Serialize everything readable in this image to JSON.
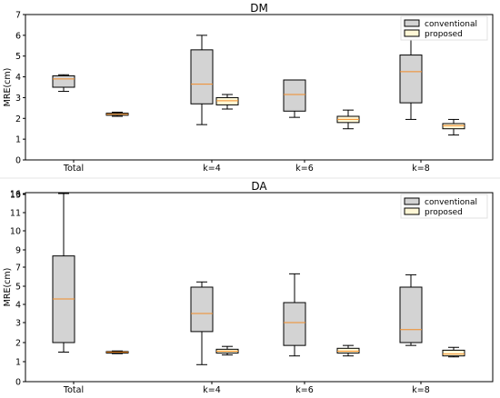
{
  "chart_data": [
    {
      "type": "box",
      "title": "DM",
      "ylabel": "MRE(cm)",
      "xlabel": "",
      "categories": [
        "Total",
        "k=4",
        "k=6",
        "k=8"
      ],
      "ylim": [
        0,
        7
      ],
      "yticks": [
        "0",
        "1",
        "2",
        "3",
        "4",
        "5",
        "6",
        "7"
      ],
      "grid": false,
      "legend_position": "top-right",
      "series": [
        {
          "name": "conventional",
          "color": "#d3d3d3",
          "boxes": [
            {
              "min": 3.3,
              "q1": 3.5,
              "median": 3.9,
              "q3": 4.05,
              "max": 4.1
            },
            {
              "min": 1.7,
              "q1": 2.7,
              "median": 3.65,
              "q3": 5.3,
              "max": 6.0
            },
            {
              "min": 2.05,
              "q1": 2.35,
              "median": 3.15,
              "q3": 3.85,
              "max": 3.85
            },
            {
              "min": 1.95,
              "q1": 2.75,
              "median": 4.25,
              "q3": 5.05,
              "max": 5.8
            }
          ]
        },
        {
          "name": "proposed",
          "color": "#fff7d6",
          "boxes": [
            {
              "min": 2.1,
              "q1": 2.15,
              "median": 2.2,
              "q3": 2.25,
              "max": 2.3
            },
            {
              "min": 2.45,
              "q1": 2.65,
              "median": 2.85,
              "q3": 3.0,
              "max": 3.15
            },
            {
              "min": 1.5,
              "q1": 1.8,
              "median": 1.95,
              "q3": 2.1,
              "max": 2.4
            },
            {
              "min": 1.2,
              "q1": 1.5,
              "median": 1.65,
              "q3": 1.75,
              "max": 1.95
            }
          ]
        }
      ]
    },
    {
      "type": "box",
      "title": "DA",
      "ylabel": "MRE(cm)",
      "xlabel": "",
      "categories": [
        "Total",
        "k=4",
        "k=6",
        "k=8"
      ],
      "yscale": "log",
      "ylim": [
        0,
        16
      ],
      "yticks": [
        "0",
        "1",
        "2",
        "3",
        "4",
        "5",
        "6",
        "7",
        "8",
        "9",
        "10",
        "11",
        "12",
        "13",
        "14",
        "15",
        "16"
      ],
      "grid": false,
      "legend_position": "top-right",
      "series": [
        {
          "name": "conventional",
          "color": "#d3d3d3",
          "boxes": [
            {
              "min": 1.5,
              "q1": 2.0,
              "median": 4.3,
              "q3": 8.3,
              "max": 16.0
            },
            {
              "min": 0.85,
              "q1": 2.55,
              "median": 3.5,
              "q3": 4.95,
              "max": 5.45
            },
            {
              "min": 1.3,
              "q1": 1.85,
              "median": 3.0,
              "q3": 4.1,
              "max": 6.3
            },
            {
              "min": 1.85,
              "q1": 2.0,
              "median": 2.65,
              "q3": 4.95,
              "max": 6.2
            }
          ]
        },
        {
          "name": "proposed",
          "color": "#fff7d6",
          "boxes": [
            {
              "min": 1.42,
              "q1": 1.45,
              "median": 1.5,
              "q3": 1.53,
              "max": 1.56
            },
            {
              "min": 1.35,
              "q1": 1.45,
              "median": 1.55,
              "q3": 1.65,
              "max": 1.8
            },
            {
              "min": 1.3,
              "q1": 1.45,
              "median": 1.55,
              "q3": 1.7,
              "max": 1.85
            },
            {
              "min": 1.25,
              "q1": 1.3,
              "median": 1.4,
              "q3": 1.6,
              "max": 1.75
            }
          ]
        }
      ]
    }
  ]
}
